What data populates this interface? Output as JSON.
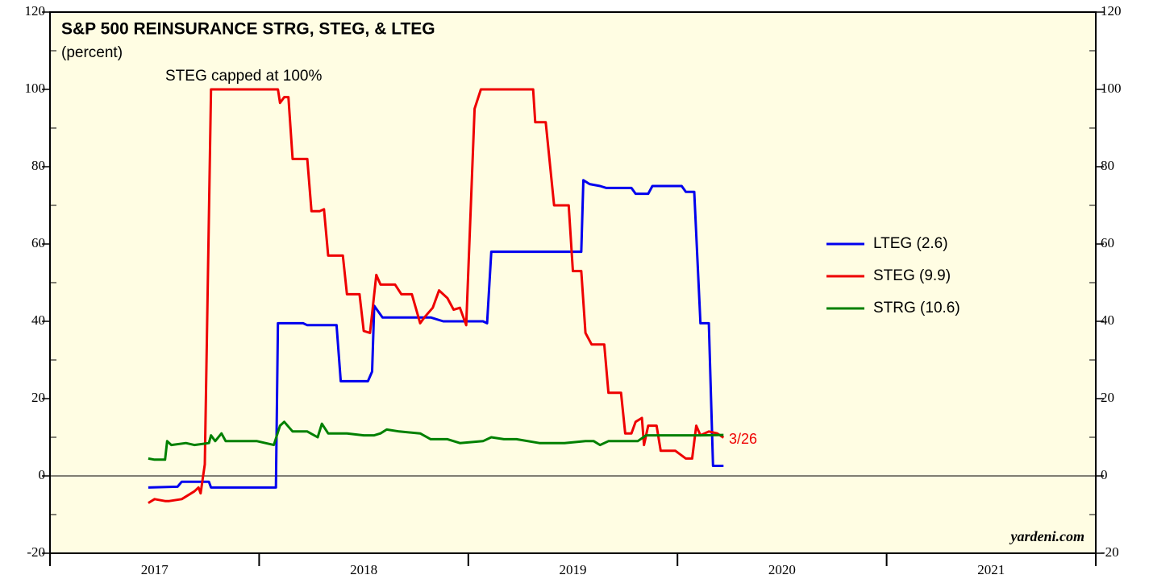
{
  "chart_data": {
    "type": "line",
    "title": "S&P 500 REINSURANCE STRG, STEG, & LTEG",
    "subtitle": "(percent)",
    "annotations": [
      "STEG capped at 100%",
      "3/26"
    ],
    "source": "yardeni.com",
    "xlim": [
      2017,
      2022
    ],
    "xticks": [
      2017,
      2018,
      2019,
      2020,
      2021
    ],
    "ylim": [
      -20,
      120
    ],
    "yticks": [
      -20,
      0,
      20,
      40,
      60,
      80,
      100,
      120
    ],
    "background": "#fffde3",
    "legend": "right",
    "series": [
      {
        "name": "LTEG (2.6)",
        "color": "#0000ee",
        "x": [
          2017.47,
          2017.61,
          2017.63,
          2017.76,
          2017.77,
          2018.08,
          2018.09,
          2018.21,
          2018.23,
          2018.37,
          2018.39,
          2018.52,
          2018.54,
          2018.55,
          2018.59,
          2018.82,
          2018.88,
          2019.07,
          2019.09,
          2019.11,
          2019.38,
          2019.54,
          2019.55,
          2019.58,
          2019.63,
          2019.66,
          2019.78,
          2019.8,
          2019.86,
          2019.88,
          2020.02,
          2020.04,
          2020.08,
          2020.11,
          2020.15,
          2020.17,
          2020.22
        ],
        "values": [
          -3,
          -2.8,
          -1.5,
          -1.5,
          -3,
          -3,
          39.5,
          39.5,
          39,
          39,
          24.5,
          24.5,
          27,
          44,
          41,
          41,
          40,
          40,
          39.5,
          58,
          58,
          58,
          76.5,
          75.5,
          75,
          74.5,
          74.5,
          73,
          73,
          75,
          75,
          73.5,
          73.5,
          39.5,
          39.5,
          2.6,
          2.6
        ]
      },
      {
        "name": "STEG (9.9)",
        "color": "#ee0000",
        "x": [
          2017.47,
          2017.5,
          2017.55,
          2017.57,
          2017.63,
          2017.69,
          2017.71,
          2017.72,
          2017.74,
          2017.77,
          2018.09,
          2018.1,
          2018.12,
          2018.14,
          2018.16,
          2018.23,
          2018.25,
          2018.29,
          2018.31,
          2018.33,
          2018.4,
          2018.42,
          2018.48,
          2018.5,
          2018.53,
          2018.56,
          2018.58,
          2018.65,
          2018.68,
          2018.73,
          2018.77,
          2018.79,
          2018.83,
          2018.86,
          2018.9,
          2018.93,
          2018.96,
          2018.99,
          2019.03,
          2019.06,
          2019.31,
          2019.32,
          2019.37,
          2019.41,
          2019.48,
          2019.5,
          2019.54,
          2019.56,
          2019.59,
          2019.65,
          2019.67,
          2019.73,
          2019.75,
          2019.78,
          2019.8,
          2019.83,
          2019.84,
          2019.86,
          2019.9,
          2019.92,
          2019.99,
          2020.04,
          2020.07,
          2020.09,
          2020.11,
          2020.15,
          2020.19,
          2020.22
        ],
        "values": [
          -7,
          -6,
          -6.5,
          -6.5,
          -6,
          -4,
          -3,
          -4.5,
          3,
          100,
          100,
          96.5,
          98,
          98,
          82,
          82,
          68.5,
          68.5,
          69,
          57,
          57,
          47,
          47,
          37.5,
          37,
          52,
          49.5,
          49.5,
          47,
          47,
          39.5,
          41,
          43.5,
          48,
          46,
          43,
          43.5,
          39,
          95,
          100,
          100,
          91.5,
          91.5,
          70,
          70,
          53,
          53,
          37,
          34,
          34,
          21.5,
          21.5,
          11,
          11,
          14,
          15,
          8,
          13,
          13,
          6.5,
          6.5,
          4.5,
          4.5,
          13,
          10.5,
          11.5,
          11,
          9.9
        ]
      },
      {
        "name": "STRG (10.6)",
        "color": "#008000",
        "x": [
          2017.47,
          2017.5,
          2017.55,
          2017.56,
          2017.58,
          2017.65,
          2017.69,
          2017.76,
          2017.77,
          2017.79,
          2017.82,
          2017.84,
          2017.92,
          2017.99,
          2018.07,
          2018.1,
          2018.12,
          2018.16,
          2018.23,
          2018.28,
          2018.3,
          2018.33,
          2018.42,
          2018.5,
          2018.55,
          2018.58,
          2018.61,
          2018.67,
          2018.77,
          2018.82,
          2018.9,
          2018.96,
          2019.07,
          2019.11,
          2019.17,
          2019.23,
          2019.34,
          2019.46,
          2019.56,
          2019.6,
          2019.63,
          2019.67,
          2019.81,
          2019.85,
          2019.96,
          2020.11,
          2020.22
        ],
        "values": [
          4.5,
          4.2,
          4.2,
          9,
          8,
          8.5,
          8,
          8.5,
          10.5,
          9,
          11,
          9,
          9,
          9,
          8,
          13,
          14,
          11.5,
          11.5,
          10,
          13.5,
          11,
          11,
          10.5,
          10.5,
          11,
          12,
          11.5,
          11,
          9.5,
          9.5,
          8.5,
          9,
          10,
          9.5,
          9.5,
          8.5,
          8.5,
          9,
          9,
          8,
          9,
          9,
          10.5,
          10.5,
          10.5,
          10.6
        ]
      }
    ]
  }
}
